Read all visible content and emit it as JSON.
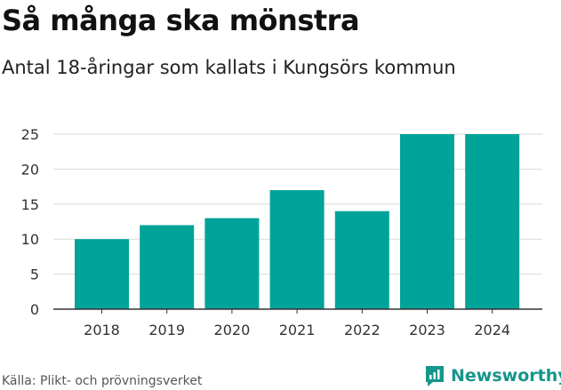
{
  "header": {
    "title": "Så många ska mönstra",
    "subtitle": "Antal 18-åringar som kallats i Kungsörs kommun"
  },
  "footer": {
    "source": "Källa: Plikt- och prövningsverket",
    "brand": "Newsworthy"
  },
  "colors": {
    "bar": "#00a398",
    "brand": "#16968a",
    "grid": "#d9d9d9"
  },
  "chart_data": {
    "type": "bar",
    "title": "Så många ska mönstra",
    "subtitle": "Antal 18-åringar som kallats i Kungsörs kommun",
    "categories": [
      "2018",
      "2019",
      "2020",
      "2021",
      "2022",
      "2023",
      "2024"
    ],
    "values": [
      10,
      12,
      13,
      17,
      14,
      25,
      25
    ],
    "ylim": [
      0,
      25
    ],
    "yticks": [
      "0",
      "5",
      "10",
      "15",
      "20",
      "25"
    ],
    "xlabel": "",
    "ylabel": "",
    "grid": true
  }
}
